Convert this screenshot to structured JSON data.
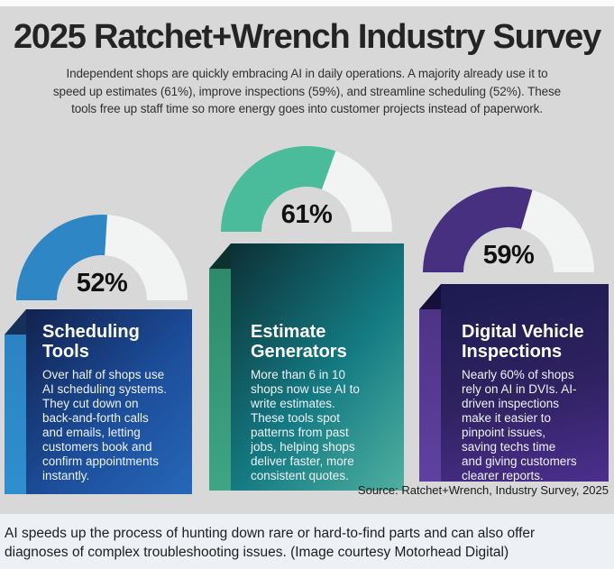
{
  "colors": {
    "page_bg": "#d8d8d8",
    "top_strip": "#fafafa",
    "caption_bg": "#edf0f5",
    "gauge_track": "#f2f4f3",
    "gauge_blue": "#2e87c4",
    "gauge_teal": "#4abc9b",
    "gauge_purple": "#483080"
  },
  "header": {
    "title": "2025 Ratchet+Wrench Industry Survey",
    "subtitle": "Independent shops are quickly embracing AI in daily operations. A majority already use it to\nspeed up estimates (61%), improve inspections (59%), and streamline scheduling (52%). These\ntools free up staff time so more energy goes into customer projects instead of paperwork."
  },
  "chart_data": {
    "type": "pie",
    "subtype": "semicircle half-donut gauges, fill sweeps clockwise from left end",
    "legend_position": "none",
    "gauges": [
      {
        "name": "Scheduling Tools",
        "value_pct": 52,
        "label": "52%",
        "color": "#2e87c4",
        "track_color": "#f2f4f3"
      },
      {
        "name": "Estimate Generators",
        "value_pct": 61,
        "label": "61%",
        "color": "#4abc9b",
        "track_color": "#f2f4f3"
      },
      {
        "name": "Digital Vehicle Inspections",
        "value_pct": 59,
        "label": "59%",
        "color": "#483080",
        "track_color": "#f2f4f3"
      }
    ]
  },
  "cards": [
    {
      "heading": "Scheduling\nTools",
      "body": "Over half of shops use\nAI scheduling systems.\nThey cut down on\nback-and-forth calls\nand emails, letting\ncustomers book and\nconfirm appointments\ninstantly.",
      "grad_angle": "133deg",
      "grad_from": "#12224f",
      "grad_mid": "#1c4d9a",
      "grad_to": "#2767b8",
      "strip_from": "#2c83c3",
      "strip_to": "#2f8fce",
      "fold_color": "#16305c"
    },
    {
      "heading": "Estimate\nGenerators",
      "body": "More than 6 in 10\nshops now use AI to\nwrite estimates.\nThese tools spot\npatterns from past\njobs, helping shops\ndeliver faster, more\nconsistent quotes.",
      "grad_angle": "130deg",
      "grad_from": "#0c3035",
      "grad_mid": "#147a82",
      "grad_to": "#4fb0a0",
      "strip_from": "#2e8a6a",
      "strip_to": "#3fa585",
      "fold_color": "#0d322e"
    },
    {
      "heading": "Digital Vehicle\nInspections",
      "body": "Nearly 60% of shops\nrely on AI in DVIs. AI-\ndriven inspections\nmake it easier to\npinpoint issues,\nsaving techs time\nand giving customers\nclearer reports.",
      "grad_angle": "168deg",
      "grad_from": "#1c1b50",
      "grad_mid": "#2f2261",
      "grad_to": "#4c2f8e",
      "strip_from": "#4e3386",
      "strip_to": "#5f41a0",
      "fold_color": "#150f3a"
    }
  ],
  "source_note": "Source: Ratchet+Wrench, Industry Survey, 2025",
  "caption": "AI speeds up the process of hunting down rare or hard-to-find parts and can also offer\ndiagnoses of complex troubleshooting issues. (Image courtesy Motorhead Digital)"
}
